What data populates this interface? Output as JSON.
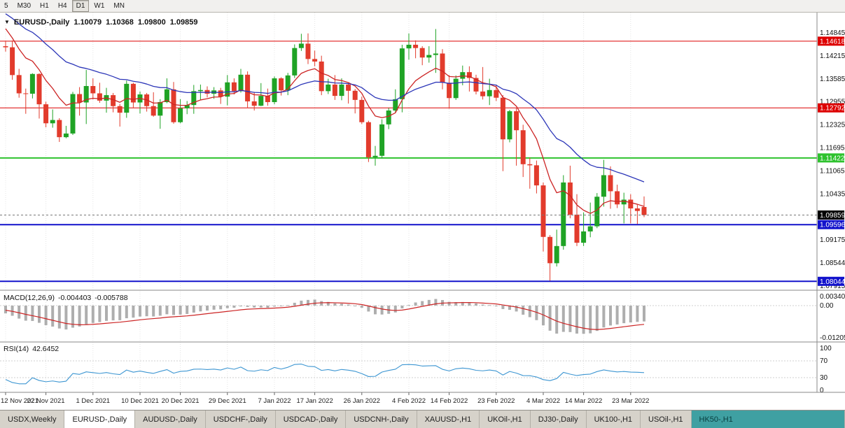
{
  "toolbar": {
    "timeframes": [
      {
        "label": "5",
        "active": false
      },
      {
        "label": "M30",
        "active": false
      },
      {
        "label": "H1",
        "active": false
      },
      {
        "label": "H4",
        "active": false
      },
      {
        "label": "D1",
        "active": true
      },
      {
        "label": "W1",
        "active": false
      },
      {
        "label": "MN",
        "active": false
      }
    ]
  },
  "chart_header": {
    "symbol": "EURUSD-,Daily",
    "open": "1.10079",
    "high": "1.10368",
    "low": "1.09800",
    "close": "1.09859"
  },
  "chart_data": {
    "type": "candlestick",
    "symbol": "EURUSD-",
    "timeframe": "Daily",
    "up_color": "#1fa325",
    "down_color": "#e23b2c",
    "x_labels": [
      {
        "index": 0,
        "label": "12 Nov 2021"
      },
      {
        "index": 6,
        "label": "22 Nov 2021"
      },
      {
        "index": 13,
        "label": "1 Dec 2021"
      },
      {
        "index": 20,
        "label": "10 Dec 2021"
      },
      {
        "index": 26,
        "label": "20 Dec 2021"
      },
      {
        "index": 33,
        "label": "29 Dec 2021"
      },
      {
        "index": 40,
        "label": "7 Jan 2022"
      },
      {
        "index": 46,
        "label": "17 Jan 2022"
      },
      {
        "index": 53,
        "label": "26 Jan 2022"
      },
      {
        "index": 60,
        "label": "4 Feb 2022"
      },
      {
        "index": 66,
        "label": "14 Feb 2022"
      },
      {
        "index": 73,
        "label": "23 Feb 2022"
      },
      {
        "index": 80,
        "label": "4 Mar 2022"
      },
      {
        "index": 86,
        "label": "14 Mar 2022"
      },
      {
        "index": 93,
        "label": "23 Mar 2022"
      }
    ],
    "ohlc": [
      [
        1.1448,
        1.1463,
        1.1433,
        1.1445
      ],
      [
        1.1445,
        1.1464,
        1.1356,
        1.1369
      ],
      [
        1.1369,
        1.1386,
        1.1307,
        1.1319
      ],
      [
        1.1319,
        1.1332,
        1.1263,
        1.1318
      ],
      [
        1.1318,
        1.1374,
        1.1305,
        1.1372
      ],
      [
        1.1372,
        1.1374,
        1.125,
        1.1289
      ],
      [
        1.1289,
        1.1296,
        1.1226,
        1.1237
      ],
      [
        1.1237,
        1.1275,
        1.1225,
        1.1246
      ],
      [
        1.1246,
        1.1251,
        1.1186,
        1.1199
      ],
      [
        1.1199,
        1.123,
        1.1196,
        1.1209
      ],
      [
        1.1209,
        1.1323,
        1.1205,
        1.1317
      ],
      [
        1.1317,
        1.1336,
        1.1258,
        1.1294
      ],
      [
        1.1294,
        1.1383,
        1.1235,
        1.1339
      ],
      [
        1.1339,
        1.136,
        1.1302,
        1.1319
      ],
      [
        1.1319,
        1.1348,
        1.1293,
        1.1299
      ],
      [
        1.1299,
        1.1334,
        1.1266,
        1.1314
      ],
      [
        1.1314,
        1.132,
        1.1267,
        1.1284
      ],
      [
        1.1284,
        1.129,
        1.1228,
        1.1266
      ],
      [
        1.1266,
        1.1354,
        1.1252,
        1.1345
      ],
      [
        1.1345,
        1.1348,
        1.128,
        1.1294
      ],
      [
        1.1294,
        1.1324,
        1.1264,
        1.1316
      ],
      [
        1.1316,
        1.132,
        1.1269,
        1.1284
      ],
      [
        1.1284,
        1.1322,
        1.1255,
        1.1258
      ],
      [
        1.1258,
        1.1303,
        1.1222,
        1.1295
      ],
      [
        1.1295,
        1.136,
        1.1292,
        1.133
      ],
      [
        1.133,
        1.135,
        1.1236,
        1.124
      ],
      [
        1.124,
        1.1303,
        1.1237,
        1.1278
      ],
      [
        1.1278,
        1.1298,
        1.1262,
        1.1287
      ],
      [
        1.1287,
        1.1342,
        1.1263,
        1.1325
      ],
      [
        1.1325,
        1.1343,
        1.1301,
        1.1328
      ],
      [
        1.1328,
        1.1338,
        1.1308,
        1.1318
      ],
      [
        1.1318,
        1.1336,
        1.1304,
        1.1327
      ],
      [
        1.1327,
        1.1334,
        1.129,
        1.131
      ],
      [
        1.131,
        1.1369,
        1.1286,
        1.1349
      ],
      [
        1.1349,
        1.136,
        1.1316,
        1.1325
      ],
      [
        1.1325,
        1.1386,
        1.1321,
        1.137
      ],
      [
        1.137,
        1.1379,
        1.1279,
        1.1297
      ],
      [
        1.1297,
        1.1323,
        1.1272,
        1.1285
      ],
      [
        1.1285,
        1.1347,
        1.1284,
        1.1312
      ],
      [
        1.1312,
        1.1332,
        1.1285,
        1.1295
      ],
      [
        1.1295,
        1.1365,
        1.1289,
        1.136
      ],
      [
        1.136,
        1.1363,
        1.1313,
        1.1327
      ],
      [
        1.1327,
        1.1375,
        1.1314,
        1.1368
      ],
      [
        1.1368,
        1.1453,
        1.1361,
        1.1443
      ],
      [
        1.1443,
        1.1482,
        1.1435,
        1.1455
      ],
      [
        1.1455,
        1.1483,
        1.1399,
        1.1413
      ],
      [
        1.1413,
        1.1436,
        1.1393,
        1.1406
      ],
      [
        1.1406,
        1.1422,
        1.1314,
        1.1325
      ],
      [
        1.1325,
        1.1359,
        1.1317,
        1.1343
      ],
      [
        1.1343,
        1.1369,
        1.1301,
        1.1312
      ],
      [
        1.1312,
        1.136,
        1.13,
        1.1343
      ],
      [
        1.1343,
        1.1349,
        1.1291,
        1.1326
      ],
      [
        1.1326,
        1.1331,
        1.1264,
        1.1301
      ],
      [
        1.1301,
        1.131,
        1.1235,
        1.124
      ],
      [
        1.124,
        1.1244,
        1.1131,
        1.1144
      ],
      [
        1.1144,
        1.1175,
        1.1121,
        1.1148
      ],
      [
        1.1148,
        1.1248,
        1.1141,
        1.1234
      ],
      [
        1.1234,
        1.1279,
        1.1221,
        1.1272
      ],
      [
        1.1272,
        1.133,
        1.1267,
        1.1303
      ],
      [
        1.1303,
        1.1452,
        1.1267,
        1.1442
      ],
      [
        1.1442,
        1.1483,
        1.1411,
        1.1452
      ],
      [
        1.1452,
        1.1464,
        1.1415,
        1.1443
      ],
      [
        1.1443,
        1.1448,
        1.1396,
        1.1417
      ],
      [
        1.1417,
        1.1448,
        1.1403,
        1.1424
      ],
      [
        1.1424,
        1.1495,
        1.1375,
        1.1428
      ],
      [
        1.1428,
        1.144,
        1.133,
        1.1348
      ],
      [
        1.1348,
        1.1369,
        1.1277,
        1.1306
      ],
      [
        1.1306,
        1.1368,
        1.1301,
        1.1359
      ],
      [
        1.1359,
        1.1395,
        1.1341,
        1.1377
      ],
      [
        1.1377,
        1.1393,
        1.1324,
        1.1361
      ],
      [
        1.1361,
        1.137,
        1.1316,
        1.1324
      ],
      [
        1.1324,
        1.1391,
        1.1302,
        1.1311
      ],
      [
        1.1311,
        1.1359,
        1.1287,
        1.1328
      ],
      [
        1.1328,
        1.1343,
        1.1298,
        1.1307
      ],
      [
        1.1307,
        1.1314,
        1.1106,
        1.1193
      ],
      [
        1.1193,
        1.1274,
        1.1185,
        1.127
      ],
      [
        1.127,
        1.1279,
        1.1121,
        1.1218
      ],
      [
        1.1218,
        1.1233,
        1.109,
        1.1125
      ],
      [
        1.1125,
        1.1143,
        1.1058,
        1.1122
      ],
      [
        1.1122,
        1.1135,
        1.1045,
        1.1067
      ],
      [
        1.1067,
        1.1075,
        1.0886,
        1.0926
      ],
      [
        1.0926,
        1.0931,
        1.0806,
        1.0854
      ],
      [
        1.0854,
        1.0946,
        1.0845,
        1.0901
      ],
      [
        1.0901,
        1.1095,
        1.0891,
        1.1075
      ],
      [
        1.1075,
        1.1121,
        1.0977,
        1.0987
      ],
      [
        1.0987,
        1.1043,
        1.0901,
        1.091
      ],
      [
        1.091,
        1.0993,
        1.0901,
        1.0941
      ],
      [
        1.0941,
        1.102,
        1.0925,
        1.0955
      ],
      [
        1.0955,
        1.1046,
        1.095,
        1.1036
      ],
      [
        1.1036,
        1.1137,
        1.1009,
        1.1095
      ],
      [
        1.1095,
        1.1119,
        1.1003,
        1.1051
      ],
      [
        1.1051,
        1.1069,
        1.1005,
        1.1015
      ],
      [
        1.1015,
        1.1047,
        1.0963,
        1.1028
      ],
      [
        1.1028,
        1.1043,
        1.0963,
        1.1004
      ],
      [
        1.1004,
        1.1014,
        1.0961,
        1.0997
      ],
      [
        1.10079,
        1.10368,
        1.098,
        1.09859
      ]
    ],
    "warmup_closes": [
      1.158,
      1.156,
      1.1572,
      1.159,
      1.1601,
      1.1585,
      1.1592,
      1.1604,
      1.1588,
      1.157,
      1.1562,
      1.1548,
      1.1536,
      1.1552,
      1.154,
      1.1524,
      1.1518,
      1.153,
      1.1508,
      1.1479,
      1.1448
    ],
    "moving_averages": [
      {
        "name": "fast-ma",
        "period": 9,
        "method": "ema",
        "color": "#cc2424"
      },
      {
        "name": "slow-ma",
        "period": 26,
        "method": "ema",
        "color": "#2c36b8"
      }
    ],
    "levels": [
      {
        "price": 1.14618,
        "label": "1.14618",
        "color": "#dd0000",
        "width": 1
      },
      {
        "price": 1.12792,
        "label": "1.12792",
        "color": "#dd0000",
        "width": 1
      },
      {
        "price": 1.11422,
        "label": "1.11422",
        "color": "#2ec22e",
        "width": 2
      },
      {
        "price": 1.09596,
        "label": "1.09596",
        "color": "#1212cc",
        "width": 2
      },
      {
        "price": 1.08044,
        "label": "1.08044",
        "color": "#1212cc",
        "width": 2
      }
    ],
    "current_price": {
      "price": 1.09859,
      "label": "1.09859",
      "bg": "#000000"
    },
    "y_axis_ticks": [
      "1.14845",
      "1.14215",
      "1.13585",
      "1.12955",
      "1.12325",
      "1.11695",
      "1.11065",
      "1.10435",
      "1.09175",
      "1.08544",
      "1.07915"
    ]
  },
  "macd_panel": {
    "label": "MACD(12,26,9)",
    "macd_value": "-0.004403",
    "signal_value": "-0.005788",
    "params": {
      "fast": 12,
      "slow": 26,
      "signal": 9
    },
    "histogram_color": "#aeaeae",
    "signal_color": "#cc2424",
    "axis_labels": [
      {
        "value": 0.0034,
        "label": "0.00340"
      },
      {
        "value": 0,
        "label": "0.00"
      },
      {
        "value": -0.01205,
        "label": "-0.01205"
      }
    ]
  },
  "rsi_panel": {
    "label": "RSI(14)",
    "value": "42.6452",
    "period": 14,
    "line_color": "#3d96d2",
    "levels": [
      70,
      30
    ],
    "axis_labels": [
      {
        "value": 100,
        "label": "100"
      },
      {
        "value": 70,
        "label": "70"
      },
      {
        "value": 30,
        "label": "30"
      },
      {
        "value": 0,
        "label": "0"
      }
    ]
  },
  "tabs": {
    "items": [
      {
        "label": "USDX,Weekly",
        "active": false
      },
      {
        "label": "EURUSD-,Daily",
        "active": true
      },
      {
        "label": "AUDUSD-,Daily",
        "active": false
      },
      {
        "label": "USDCHF-,Daily",
        "active": false
      },
      {
        "label": "USDCAD-,Daily",
        "active": false
      },
      {
        "label": "USDCNH-,Daily",
        "active": false
      },
      {
        "label": "XAUUSD-,H1",
        "active": false
      },
      {
        "label": "UKOil-,H1",
        "active": false
      },
      {
        "label": "DJ30-,Daily",
        "active": false
      },
      {
        "label": "UK100-,H1",
        "active": false
      },
      {
        "label": "USOil-,H1",
        "active": false
      },
      {
        "label": "HK50-,H1",
        "active": false,
        "highlight": true
      }
    ]
  }
}
